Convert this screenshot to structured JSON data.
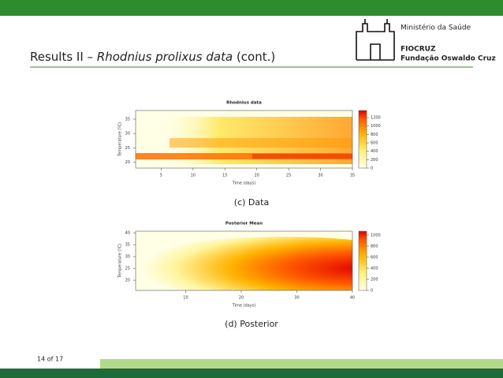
{
  "header": {
    "title": "Results II – ",
    "title_italic": "Rhodnius prolixus data",
    "title_end": " (cont.)",
    "org_lines": [
      "Ministério da Saúde",
      "FIOCRUZ",
      "Fundação Oswaldo Cruz"
    ]
  },
  "figures": [
    {
      "title": "Rhodnius data",
      "xlabel": "Time (days)",
      "ylabel": "Temperature (ºC)",
      "xlim": [
        1,
        35
      ],
      "xticks": [
        5,
        10,
        15,
        20,
        25,
        30,
        35
      ],
      "ylim": [
        18,
        38
      ],
      "yticks": [
        20,
        25,
        30,
        35
      ],
      "clim": [
        0,
        1370
      ],
      "cticks": [
        0,
        200,
        400,
        600,
        800,
        1000,
        1200
      ],
      "caption": "(c) Data"
    },
    {
      "title": "Posterior Mean",
      "xlabel": "Time (days)",
      "ylabel": "Temperature (ºC)",
      "xlim": [
        1,
        40
      ],
      "xticks": [
        10,
        20,
        30,
        40
      ],
      "ylim": [
        15.7,
        40.7
      ],
      "yticks": [
        20,
        25,
        30,
        35,
        40
      ],
      "clim": [
        0,
        1070
      ],
      "cticks": [
        0,
        200,
        400,
        600,
        800,
        1000
      ],
      "caption": "(d) Posterior"
    }
  ],
  "footer": {
    "page": "14 of 17"
  }
}
